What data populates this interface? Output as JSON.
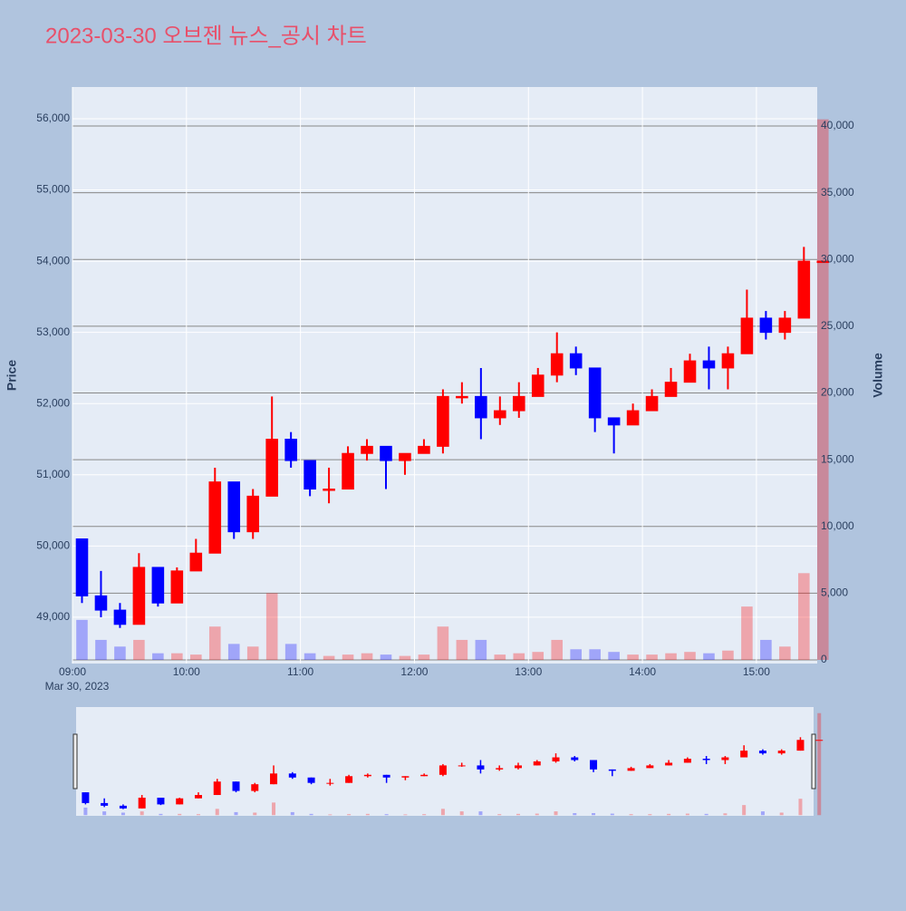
{
  "chart_data": {
    "type": "candlestick",
    "title": "2023-03-30 오브젠 뉴스_공시 차트",
    "y_label": "Price",
    "y2_label": "Volume",
    "date_label": "Mar 30, 2023",
    "increasing_color": "#ff0000",
    "decreasing_color": "#0000ff",
    "x": [
      "09:00",
      "09:10",
      "09:20",
      "09:30",
      "09:40",
      "09:50",
      "10:00",
      "10:10",
      "10:20",
      "10:30",
      "10:40",
      "10:50",
      "11:00",
      "11:10",
      "11:20",
      "11:30",
      "11:40",
      "11:50",
      "12:00",
      "12:10",
      "12:20",
      "12:30",
      "12:40",
      "12:50",
      "13:00",
      "13:10",
      "13:20",
      "13:30",
      "13:40",
      "13:50",
      "14:00",
      "14:10",
      "14:20",
      "14:30",
      "14:40",
      "14:50",
      "15:00",
      "15:10",
      "15:20",
      "15:30"
    ],
    "open": [
      50100,
      49300,
      49100,
      48900,
      49700,
      49200,
      49650,
      49900,
      50900,
      50200,
      50700,
      51500,
      51200,
      50800,
      50800,
      51300,
      51400,
      51200,
      51300,
      51400,
      52100,
      52100,
      51800,
      51900,
      52100,
      52400,
      52700,
      52500,
      51800,
      51700,
      51900,
      52100,
      52300,
      52600,
      52500,
      52700,
      53200,
      53000,
      53200,
      54000
    ],
    "high": [
      50100,
      49650,
      49200,
      49900,
      49700,
      49700,
      50100,
      51100,
      50900,
      50800,
      52100,
      51600,
      51200,
      51100,
      51400,
      51500,
      51400,
      51300,
      51500,
      52200,
      52300,
      52500,
      52100,
      52300,
      52500,
      53000,
      52800,
      52500,
      51800,
      52000,
      52200,
      52500,
      52700,
      52800,
      52800,
      53600,
      53300,
      53300,
      54200,
      54000
    ],
    "low": [
      49200,
      49000,
      48850,
      48900,
      49150,
      49200,
      49650,
      49900,
      50100,
      50100,
      50700,
      51100,
      50700,
      50600,
      50800,
      51200,
      50800,
      51000,
      51300,
      51300,
      52000,
      51500,
      51700,
      51800,
      52100,
      52300,
      52400,
      51600,
      51300,
      51700,
      51900,
      52100,
      52300,
      52200,
      52200,
      52700,
      52900,
      52900,
      53200,
      54000
    ],
    "close": [
      49300,
      49100,
      48900,
      49700,
      49200,
      49650,
      49900,
      50900,
      50200,
      50700,
      51500,
      51200,
      50800,
      50800,
      51300,
      51400,
      51200,
      51300,
      51400,
      52100,
      52100,
      51800,
      51900,
      52100,
      52400,
      52700,
      52500,
      51800,
      51700,
      51900,
      52100,
      52300,
      52600,
      52500,
      52700,
      53200,
      53000,
      53200,
      54000,
      54000
    ],
    "volume": [
      3000,
      1500,
      1000,
      1500,
      500,
      500,
      400,
      2500,
      1200,
      1000,
      5000,
      1200,
      500,
      300,
      400,
      500,
      400,
      300,
      400,
      2500,
      1500,
      1500,
      400,
      500,
      600,
      1500,
      800,
      800,
      600,
      400,
      400,
      500,
      600,
      500,
      700,
      4000,
      1500,
      1000,
      6500,
      40500
    ],
    "xlim": [
      "09:00",
      "15:32"
    ],
    "xticks": [
      "09:00",
      "10:00",
      "11:00",
      "12:00",
      "13:00",
      "14:00",
      "15:00"
    ],
    "ylim": [
      48350,
      56445
    ],
    "yticks": [
      {
        "value": 49000,
        "label": "49,000"
      },
      {
        "value": 50000,
        "label": "50,000"
      },
      {
        "value": 51000,
        "label": "51,000"
      },
      {
        "value": 52000,
        "label": "52,000"
      },
      {
        "value": 53000,
        "label": "53,000"
      },
      {
        "value": 54000,
        "label": "54,000"
      },
      {
        "value": 55000,
        "label": "55,000"
      },
      {
        "value": 56000,
        "label": "56,000"
      }
    ],
    "y2lim": [
      -270,
      42920
    ],
    "y2ticks": [
      0,
      {
        "value": 5000,
        "label": "5,000"
      },
      {
        "value": 10000,
        "label": "10,000"
      },
      {
        "value": 15000,
        "label": "15,000"
      },
      {
        "value": 20000,
        "label": "20,000"
      },
      {
        "value": 25000,
        "label": "25,000"
      },
      {
        "value": 30000,
        "label": "30,000"
      },
      {
        "value": 35000,
        "label": "35,000"
      },
      {
        "value": 40000,
        "label": "40,000"
      }
    ],
    "grid": true,
    "range_slider": true
  }
}
